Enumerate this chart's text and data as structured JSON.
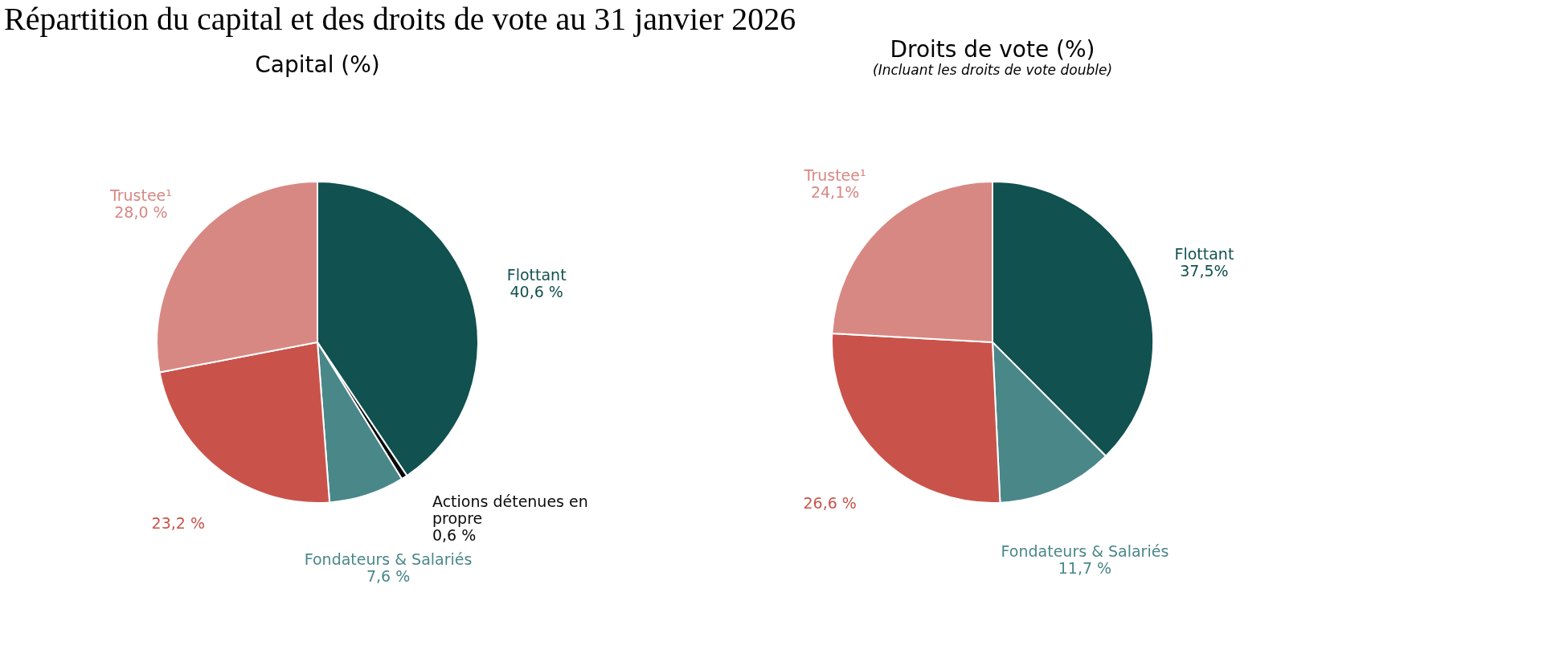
{
  "chart_data": [
    {
      "type": "pie",
      "title": "Capital (%)",
      "annotations": [
        "Répartition du capital et des droits de vote au 31 janvier 2026"
      ],
      "categories": [
        "Flottant",
        "Actions détenues en propre",
        "Fondateurs & Salariés",
        null,
        "Trustee¹"
      ],
      "values": [
        40.6,
        0.6,
        7.6,
        23.2,
        28.0
      ],
      "value_labels": [
        "40,6 %",
        "0,6 %",
        "7,6 %",
        "23,2 %",
        "28,0 %"
      ],
      "colors": [
        "#11514f",
        "#0a0a0a",
        "#4a8789",
        "#c9534a",
        "#d88883"
      ]
    },
    {
      "type": "pie",
      "title": "Droits de vote (%)",
      "subtitle": "(Incluant les droits de vote double)",
      "categories": [
        "Flottant",
        "Fondateurs & Salariés",
        null,
        "Trustee¹"
      ],
      "values": [
        37.5,
        11.7,
        26.6,
        24.1
      ],
      "value_labels": [
        "37,5%",
        "11,7 %",
        "26,6 %",
        "24,1%"
      ],
      "colors": [
        "#11514f",
        "#4a8789",
        "#c9534a",
        "#d88883"
      ]
    }
  ]
}
